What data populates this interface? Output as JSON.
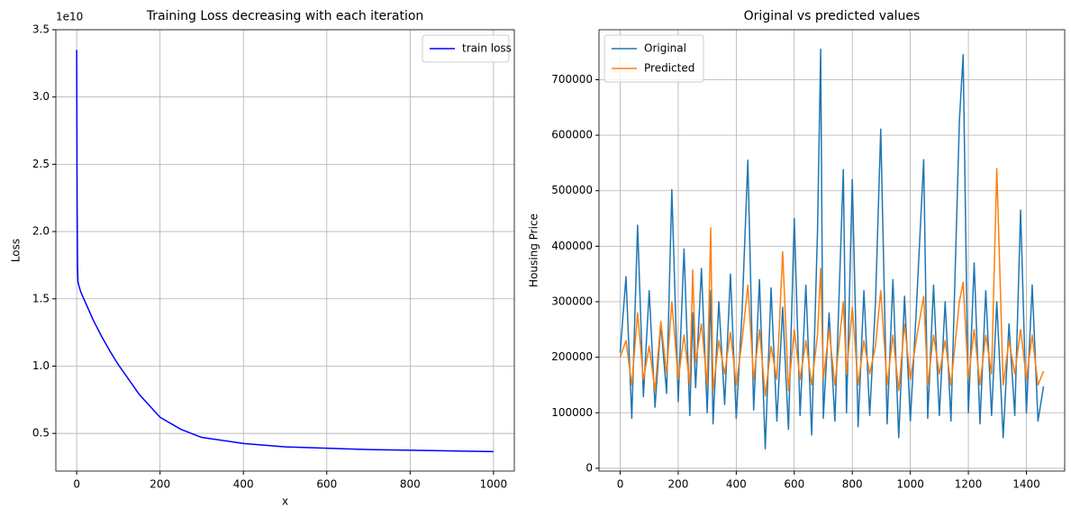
{
  "chart_data": [
    {
      "type": "line",
      "title": "Training Loss decreasing with each iteration",
      "xlabel": "x",
      "ylabel": "Loss",
      "y_offset_label": "1e10",
      "x": [
        0,
        1,
        2,
        3,
        5,
        10,
        20,
        40,
        60,
        80,
        100,
        150,
        200,
        250,
        300,
        400,
        500,
        600,
        700,
        800,
        900,
        1000
      ],
      "series": [
        {
          "name": "train loss",
          "color": "#0000ff",
          "values": [
            3.35,
            2.2,
            1.75,
            1.63,
            1.6,
            1.55,
            1.48,
            1.34,
            1.22,
            1.11,
            1.01,
            0.79,
            0.62,
            0.53,
            0.47,
            0.425,
            0.4,
            0.39,
            0.38,
            0.375,
            0.37,
            0.365
          ]
        }
      ],
      "xlim": [
        -50,
        1050
      ],
      "ylim": [
        0.22,
        3.5
      ],
      "xticks": [
        0,
        200,
        400,
        600,
        800,
        1000
      ],
      "yticks": [
        0.5,
        {
          "value": 1,
          "label": "1.0"
        },
        1.5,
        {
          "value": 2,
          "label": "2.0"
        },
        2.5,
        {
          "value": 3,
          "label": "3.0"
        },
        3.5
      ],
      "grid": true,
      "legend": "upper-right"
    },
    {
      "type": "line",
      "title": "Original vs predicted values",
      "ylabel": "Housing Price",
      "x": [
        0,
        20,
        40,
        60,
        80,
        100,
        120,
        140,
        160,
        178,
        200,
        220,
        240,
        250,
        260,
        280,
        300,
        312,
        320,
        340,
        360,
        380,
        400,
        420,
        440,
        460,
        480,
        500,
        520,
        540,
        560,
        580,
        600,
        620,
        640,
        660,
        680,
        691,
        700,
        720,
        740,
        769,
        780,
        800,
        820,
        840,
        860,
        880,
        898,
        920,
        940,
        960,
        980,
        1000,
        1020,
        1046,
        1060,
        1080,
        1100,
        1120,
        1140,
        1169,
        1182,
        1200,
        1220,
        1240,
        1260,
        1280,
        1298,
        1320,
        1340,
        1360,
        1380,
        1400,
        1420,
        1440,
        1459
      ],
      "series": [
        {
          "name": "Original",
          "color": "#1f77b4",
          "values": [
            208500,
            345000,
            90000,
            438000,
            129000,
            320000,
            110000,
            260000,
            135000,
            502000,
            120000,
            395000,
            95000,
            280000,
            145000,
            360000,
            100000,
            320000,
            80000,
            300000,
            115000,
            350000,
            90000,
            280000,
            555000,
            105000,
            340000,
            35000,
            325000,
            85000,
            290000,
            70000,
            450000,
            95000,
            330000,
            60000,
            425000,
            755000,
            90000,
            280000,
            85000,
            538000,
            100000,
            520000,
            75000,
            320000,
            95000,
            300000,
            611000,
            80000,
            340000,
            55000,
            310000,
            85000,
            280000,
            556000,
            90000,
            330000,
            95000,
            300000,
            85000,
            625000,
            745000,
            100000,
            370000,
            80000,
            320000,
            95000,
            300000,
            55000,
            260000,
            95000,
            465000,
            100000,
            330000,
            85000,
            147500
          ]
        },
        {
          "name": "Predicted",
          "color": "#ff7f0e",
          "values": [
            200000,
            230000,
            150000,
            280000,
            160000,
            220000,
            140000,
            265000,
            170000,
            300000,
            160000,
            240000,
            150000,
            357000,
            190000,
            260000,
            150000,
            433000,
            140000,
            230000,
            170000,
            245000,
            150000,
            230000,
            330000,
            160000,
            250000,
            130000,
            220000,
            160000,
            390000,
            140000,
            250000,
            160000,
            230000,
            150000,
            240000,
            360000,
            160000,
            250000,
            150000,
            300000,
            170000,
            290000,
            150000,
            230000,
            170000,
            220000,
            320000,
            150000,
            240000,
            140000,
            260000,
            160000,
            230000,
            310000,
            150000,
            240000,
            170000,
            230000,
            150000,
            300000,
            335000,
            160000,
            250000,
            150000,
            240000,
            170000,
            540000,
            150000,
            230000,
            170000,
            250000,
            160000,
            240000,
            150000,
            175000
          ]
        }
      ],
      "xlim": [
        -73,
        1532
      ],
      "ylim": [
        -5000,
        790000
      ],
      "xticks": [
        0,
        200,
        400,
        600,
        800,
        1000,
        1200,
        1400
      ],
      "yticks": [
        0,
        100000,
        200000,
        300000,
        400000,
        500000,
        600000,
        700000
      ],
      "grid": true,
      "legend": "upper-left"
    }
  ]
}
